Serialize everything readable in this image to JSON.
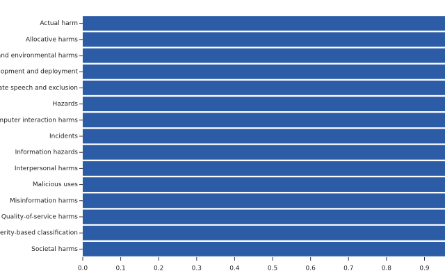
{
  "chart_data": {
    "type": "barh",
    "categories": [
      "Actual harm",
      "Allocative harms",
      "ss, and environmental harms",
      "evelopment and deployment",
      "n, Hate speech and exclusion",
      "Hazards",
      "-computer interaction harms",
      "Incidents",
      "Information hazards",
      "Interpersonal harms",
      "Malicious uses",
      "Misinformation harms",
      "Quality-of-service harms",
      "Severity-based classification",
      "Societal harms"
    ],
    "values": [
      1,
      1,
      1,
      1,
      1,
      1,
      1,
      1,
      1,
      1,
      1,
      1,
      1,
      1,
      1
    ],
    "color": "#2d5ca6",
    "xlim": [
      0,
      0.954
    ],
    "xticks": [
      {
        "value": 0,
        "label": "0.0"
      },
      0.1,
      0.2,
      0.3,
      0.4,
      0.5,
      0.6,
      0.7,
      0.8,
      0.9
    ]
  }
}
